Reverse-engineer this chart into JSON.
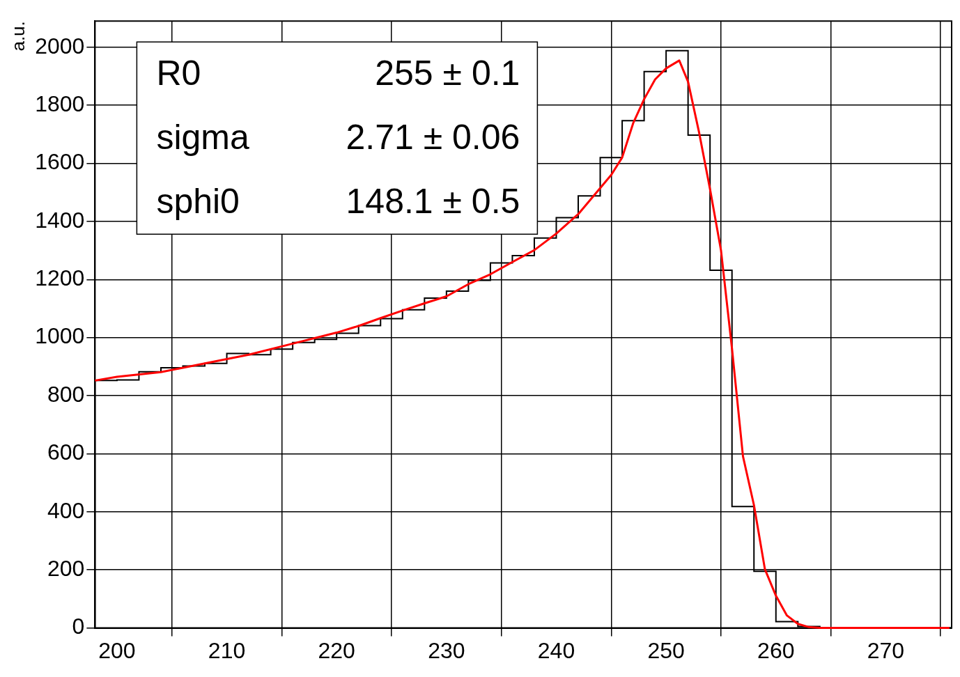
{
  "chart_data": {
    "type": "histogram",
    "ylabel": "a.u.",
    "xlim": [
      198,
      276
    ],
    "ylim": [
      0,
      2090
    ],
    "xticks": [
      200,
      210,
      220,
      230,
      240,
      250,
      260,
      270
    ],
    "yticks": [
      0,
      200,
      400,
      600,
      800,
      1000,
      1200,
      1400,
      1600,
      1800,
      2000
    ],
    "grid": true,
    "color": "#000000",
    "bins": [
      198,
      200,
      202,
      204,
      206,
      208,
      210,
      212,
      214,
      216,
      218,
      220,
      222,
      224,
      226,
      228,
      230,
      232,
      234,
      236,
      238,
      240,
      242,
      244,
      246,
      248,
      250,
      252,
      254,
      256,
      258,
      260,
      262,
      264,
      266,
      268,
      270,
      272,
      274,
      276
    ],
    "values": [
      852,
      854,
      882,
      896,
      902,
      911,
      945,
      941,
      960,
      983,
      994,
      1015,
      1041,
      1065,
      1096,
      1136,
      1160,
      1197,
      1257,
      1282,
      1343,
      1413,
      1488,
      1620,
      1747,
      1916,
      1988,
      1697,
      1232,
      418,
      195,
      22,
      5,
      0,
      0,
      0,
      0,
      0,
      0
    ],
    "series": [
      {
        "type": "line",
        "color": "#ff0000",
        "x": [
          198,
          200,
          204,
          208,
          212,
          216,
          220,
          222,
          224,
          226,
          228,
          230,
          232,
          234,
          236,
          238,
          240,
          242,
          244,
          245,
          246,
          247,
          248,
          249,
          250,
          251.2,
          252,
          253,
          254,
          255,
          256,
          257,
          258,
          259,
          260,
          261,
          262,
          263,
          264,
          275.8
        ],
        "values": [
          852,
          865,
          881,
          911,
          941,
          979,
          1017,
          1040,
          1067,
          1093,
          1118,
          1142,
          1184,
          1218,
          1260,
          1301,
          1358,
          1425,
          1515,
          1560,
          1620,
          1738,
          1821,
          1889,
          1927,
          1954,
          1881,
          1707,
          1511,
          1300,
          962,
          591,
          423,
          202,
          111,
          43,
          14,
          3,
          0,
          0
        ]
      }
    ],
    "annotations": [
      "R0",
      "255 ± 0.1",
      "sigma",
      "2.71 ± 0.06",
      "sphi0",
      "148.1 ± 0.5"
    ]
  }
}
